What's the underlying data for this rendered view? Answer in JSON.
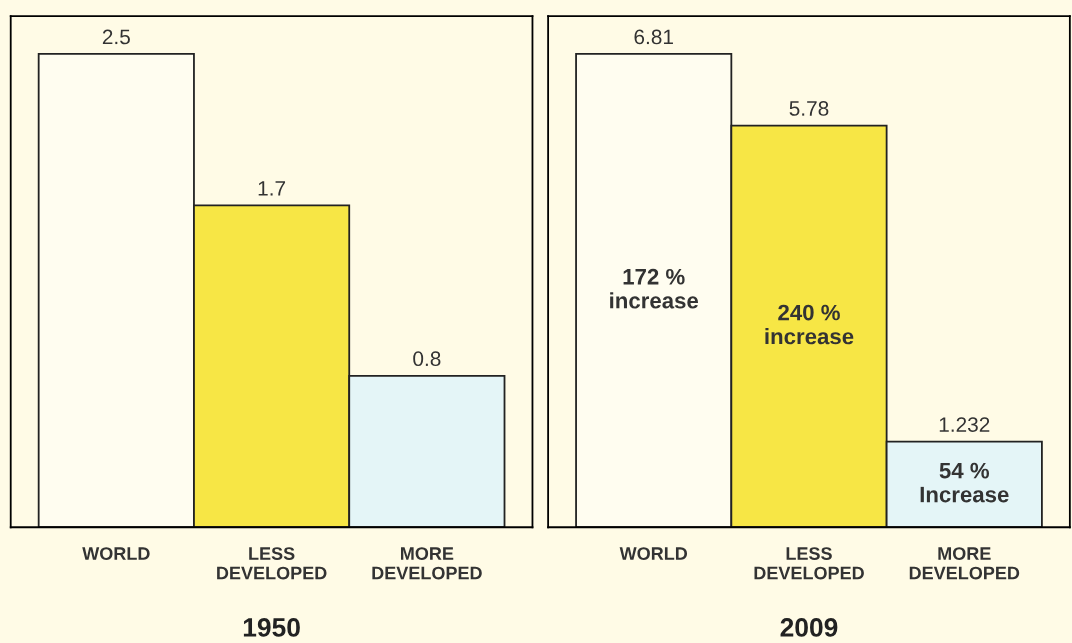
{
  "chart_data": [
    {
      "type": "bar",
      "title": "1950",
      "categories": [
        "WORLD",
        "LESS\nDEVELOPED",
        "MORE\nDEVELOPED"
      ],
      "values": [
        2.5,
        1.7,
        0.8
      ],
      "colors": [
        "#fffdf0",
        "#f7e645",
        "#e4f5f7"
      ],
      "data_labels": true,
      "tick_labels": "x"
    },
    {
      "type": "bar",
      "title": "2009",
      "categories": [
        "WORLD",
        "LESS\nDEVELOPED",
        "MORE\nDEVELOPED"
      ],
      "values": [
        6.81,
        5.78,
        1.232
      ],
      "colors": [
        "#fffdf0",
        "#f7e645",
        "#e4f5f7"
      ],
      "data_labels": true,
      "tick_labels": "x",
      "annotations": [
        "172 %\nincrease",
        "240 %\nincrease",
        "54 %\nIncrease"
      ]
    }
  ]
}
